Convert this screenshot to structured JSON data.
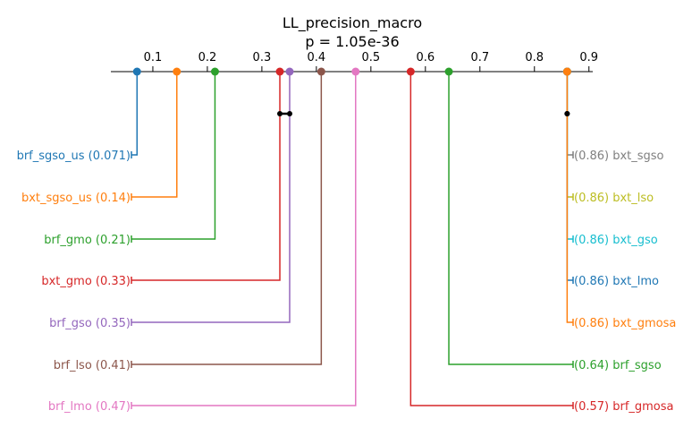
{
  "chart_data": {
    "type": "critical-difference",
    "title": "LL_precision_macro",
    "subtitle": "p = 1.05e-36",
    "axis": {
      "ticks": [
        0.1,
        0.2,
        0.3,
        0.4,
        0.5,
        0.6,
        0.7,
        0.8,
        0.9
      ],
      "tick_labels": [
        "0.1",
        "0.2",
        "0.3",
        "0.4",
        "0.5",
        "0.6",
        "0.7",
        "0.8",
        "0.9"
      ],
      "range": [
        0.023,
        0.907
      ]
    },
    "left_methods": [
      {
        "name": "brf_sgso_us",
        "value": 0.071,
        "label": "brf_sgso_us (0.071)",
        "color": "#1f77b4"
      },
      {
        "name": "bxt_sgso_us",
        "value": 0.144,
        "label": "bxt_sgso_us (0.14)",
        "color": "#ff7f0e"
      },
      {
        "name": "brf_gmo",
        "value": 0.214,
        "label": "brf_gmo (0.21)",
        "color": "#2ca02c"
      },
      {
        "name": "bxt_gmo",
        "value": 0.333,
        "label": "bxt_gmo (0.33)",
        "color": "#d62728"
      },
      {
        "name": "brf_gso",
        "value": 0.351,
        "label": "brf_gso (0.35)",
        "color": "#9467bd"
      },
      {
        "name": "brf_lso",
        "value": 0.409,
        "label": "brf_lso (0.41)",
        "color": "#8c564b"
      },
      {
        "name": "brf_lmo",
        "value": 0.472,
        "label": "brf_lmo (0.47)",
        "color": "#e377c2"
      }
    ],
    "right_methods": [
      {
        "name": "bxt_sgso",
        "value": 0.86,
        "label": "(0.86) bxt_sgso",
        "color": "#7f7f7f"
      },
      {
        "name": "bxt_lso",
        "value": 0.86,
        "label": "(0.86) bxt_lso",
        "color": "#bcbd22"
      },
      {
        "name": "bxt_gso",
        "value": 0.86,
        "label": "(0.86) bxt_gso",
        "color": "#17becf"
      },
      {
        "name": "bxt_lmo",
        "value": 0.86,
        "label": "(0.86) bxt_lmo",
        "color": "#1f77b4"
      },
      {
        "name": "bxt_gmosa",
        "value": 0.86,
        "label": "(0.86) bxt_gmosa",
        "color": "#ff7f0e"
      },
      {
        "name": "brf_sgso",
        "value": 0.643,
        "label": "(0.64) brf_sgso",
        "color": "#2ca02c"
      },
      {
        "name": "brf_gmosa",
        "value": 0.573,
        "label": "(0.57) brf_gmosa",
        "color": "#d62728"
      }
    ],
    "cliques": [
      {
        "from": 0.333,
        "to": 0.351
      },
      {
        "from": 0.86,
        "to": 0.86
      }
    ]
  }
}
